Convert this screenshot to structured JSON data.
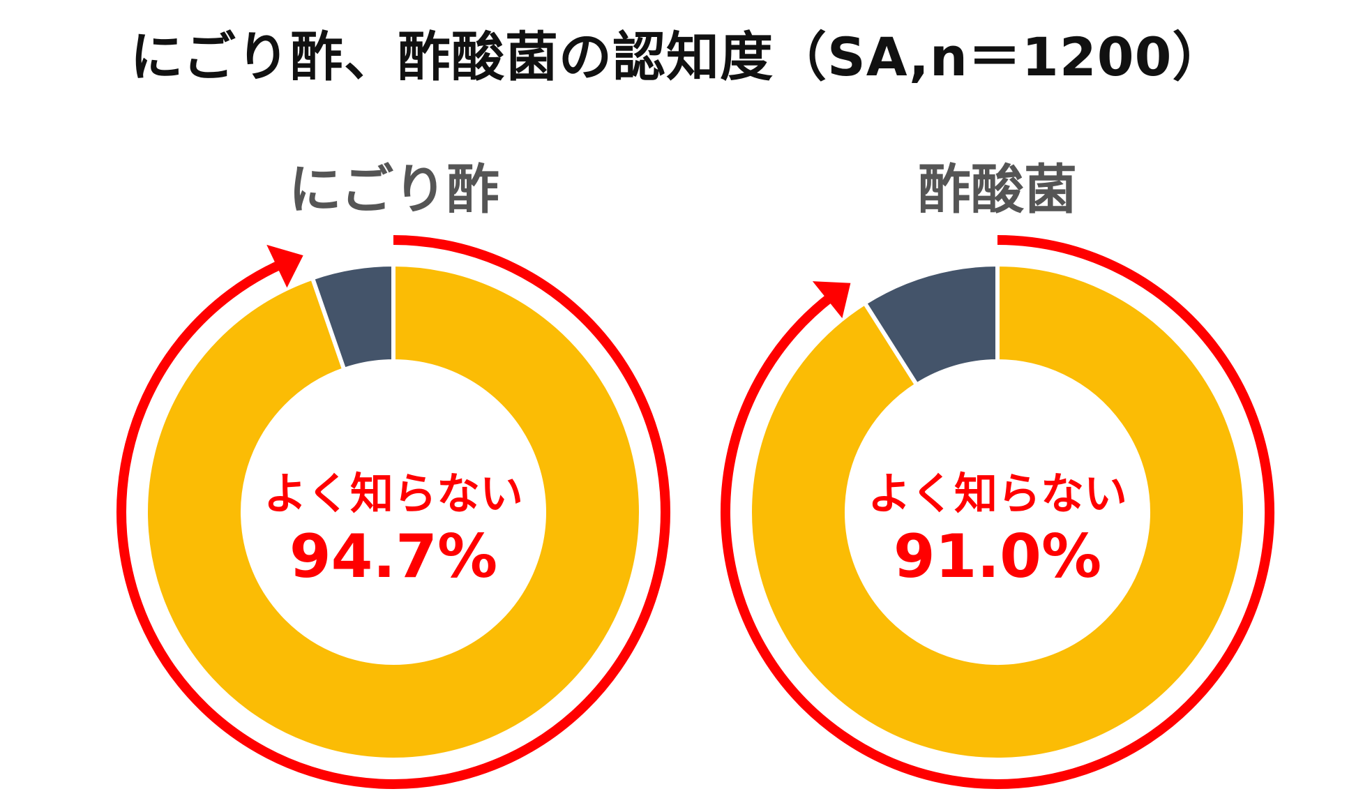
{
  "title": "にごり酢、酢酸菌の認知度（SA,n＝1200）",
  "colors": {
    "primary": "#FBBC05",
    "secondary": "#44546A",
    "accent": "#FF0000",
    "subtitle": "#555555"
  },
  "chart_data": [
    {
      "type": "pie",
      "title": "にごり酢",
      "slices": [
        {
          "name": "よく知らない",
          "value": 94.7
        },
        {
          "name": "",
          "value": 5.3
        }
      ],
      "center_caption": "よく知らない",
      "center_value": "94.7%"
    },
    {
      "type": "pie",
      "title": "酢酸菌",
      "slices": [
        {
          "name": "よく知らない",
          "value": 91.0
        },
        {
          "name": "",
          "value": 9.0
        }
      ],
      "center_caption": "よく知らない",
      "center_value": "91.0%"
    }
  ]
}
